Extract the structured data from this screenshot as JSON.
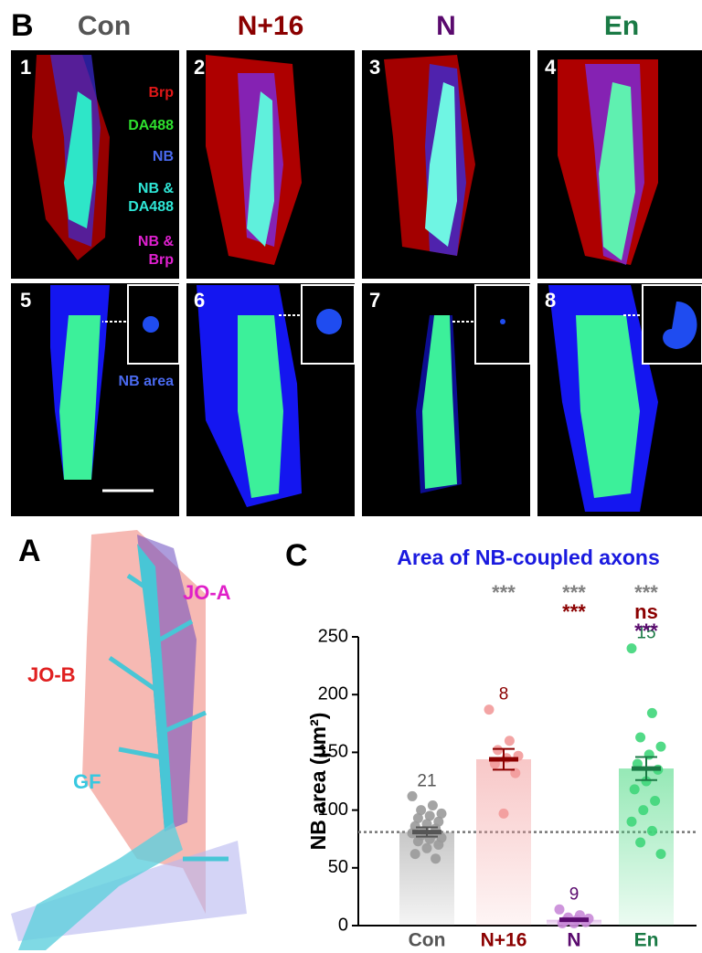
{
  "panel_b": {
    "label": "B",
    "columns": [
      "Con",
      "N+16",
      "N",
      "En"
    ],
    "numbers": [
      "1",
      "2",
      "3",
      "4",
      "5",
      "6",
      "7",
      "8"
    ],
    "legend": [
      [
        "Brp"
      ],
      [
        "DA488"
      ],
      [
        "NB"
      ],
      [
        "NB &",
        "DA488"
      ],
      [
        "NB &",
        "Brp"
      ]
    ],
    "area_label": "NB area"
  },
  "panel_a": {
    "label": "A",
    "labels": [
      "JO-A",
      "JO-B",
      "GF"
    ]
  },
  "panel_c": {
    "label": "C"
  },
  "chart_data": {
    "type": "bar",
    "title": "Area of NB-coupled axons",
    "y_label": "NB area (μm²)",
    "categories": [
      "Con",
      "N+16",
      "N",
      "En"
    ],
    "colors": [
      "#555555",
      "#8b0000",
      "#5a0a6e",
      "#1a7a45"
    ],
    "point_colors": [
      "#9a9a9a",
      "#f29a9a",
      "#c98ad8",
      "#3fd67a"
    ],
    "values": [
      81,
      144,
      5,
      136
    ],
    "errors": [
      4,
      9,
      1,
      10
    ],
    "n": [
      21,
      8,
      9,
      15
    ],
    "points": [
      [
        112,
        104,
        100,
        97,
        95,
        93,
        90,
        88,
        86,
        84,
        82,
        80,
        79,
        78,
        76,
        75,
        73,
        70,
        67,
        62,
        58
      ],
      [
        187,
        160,
        152,
        147,
        145,
        140,
        132,
        97
      ],
      [
        14,
        9,
        7,
        6,
        5,
        4,
        3,
        2,
        2
      ],
      [
        240,
        184,
        163,
        155,
        148,
        140,
        135,
        125,
        118,
        108,
        100,
        90,
        82,
        72,
        62
      ]
    ],
    "significance": [
      [],
      [
        {
          "text": "***",
          "color": "#808080"
        }
      ],
      [
        {
          "text": "***",
          "color": "#808080"
        },
        {
          "text": "***",
          "color": "#8b0000"
        }
      ],
      [
        {
          "text": "***",
          "color": "#808080"
        },
        {
          "text": "ns",
          "color": "#8b0000"
        },
        {
          "text": "***",
          "color": "#5a0a6e"
        }
      ]
    ],
    "ylim": [
      0,
      250
    ],
    "yticks": [
      0,
      50,
      100,
      150,
      200,
      250
    ]
  }
}
